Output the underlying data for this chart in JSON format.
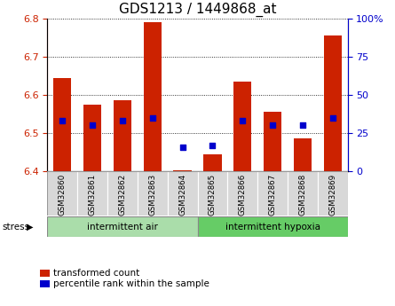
{
  "title": "GDS1213 / 1449868_at",
  "samples": [
    "GSM32860",
    "GSM32861",
    "GSM32862",
    "GSM32863",
    "GSM32864",
    "GSM32865",
    "GSM32866",
    "GSM32867",
    "GSM32868",
    "GSM32869"
  ],
  "bar_values": [
    6.645,
    6.575,
    6.585,
    6.79,
    6.403,
    6.445,
    6.635,
    6.555,
    6.487,
    6.755
  ],
  "percentile_values": [
    33,
    30,
    33,
    35,
    16,
    17,
    33,
    30,
    30,
    35
  ],
  "ylim_left": [
    6.4,
    6.8
  ],
  "ylim_right": [
    0,
    100
  ],
  "yticks_left": [
    6.4,
    6.5,
    6.6,
    6.7,
    6.8
  ],
  "yticks_right": [
    0,
    25,
    50,
    75,
    100
  ],
  "bar_color": "#cc2200",
  "dot_color": "#0000cc",
  "bar_base": 6.4,
  "group1_label": "intermittent air",
  "group2_label": "intermittent hypoxia",
  "group1_count": 5,
  "stress_label": "stress",
  "legend_bar": "transformed count",
  "legend_dot": "percentile rank within the sample",
  "sample_bg_color": "#d8d8d8",
  "group1_color": "#aaddaa",
  "group2_color": "#66cc66",
  "right_tick_color": "#0000cc",
  "left_tick_color": "#cc2200",
  "title_fontsize": 11,
  "bar_width": 0.6
}
